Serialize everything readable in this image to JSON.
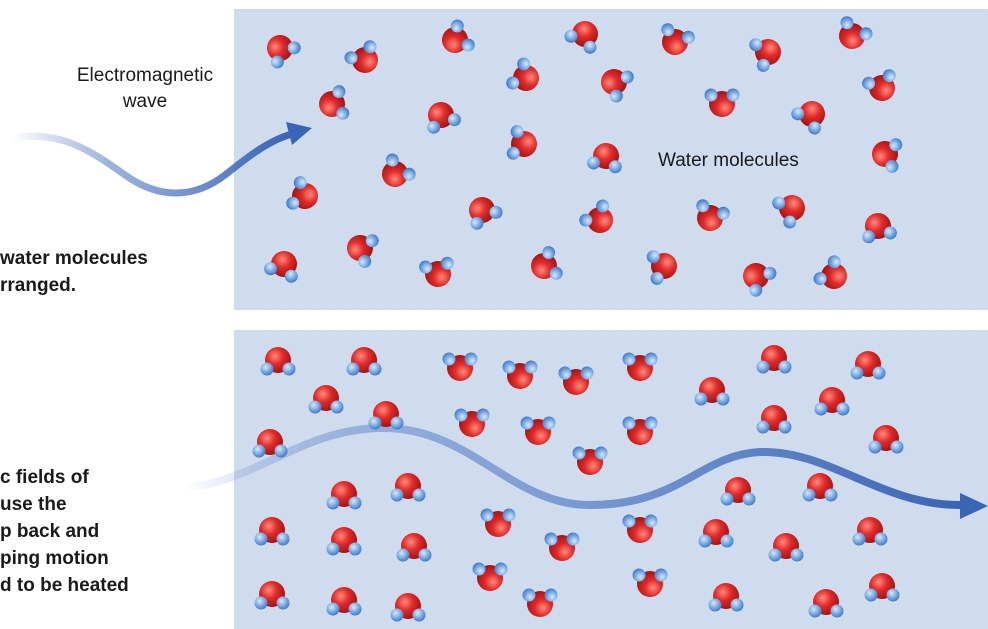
{
  "labels": {
    "wave": "Electromagnetic\nwave",
    "molecules": "Water molecules"
  },
  "captions": {
    "top": "water molecules\nrranged.",
    "bottom": "c fields of\nuse the\np back and\nping motion\nd to be heated"
  },
  "colors": {
    "panel": "#cfdcee",
    "oxygen": "#e02a2a",
    "hydrogen": "#7fb0e6",
    "wave": "#3a64b4"
  },
  "icons": {
    "molecule": "water-molecule-icon",
    "arrow": "wave-arrow-icon"
  }
}
